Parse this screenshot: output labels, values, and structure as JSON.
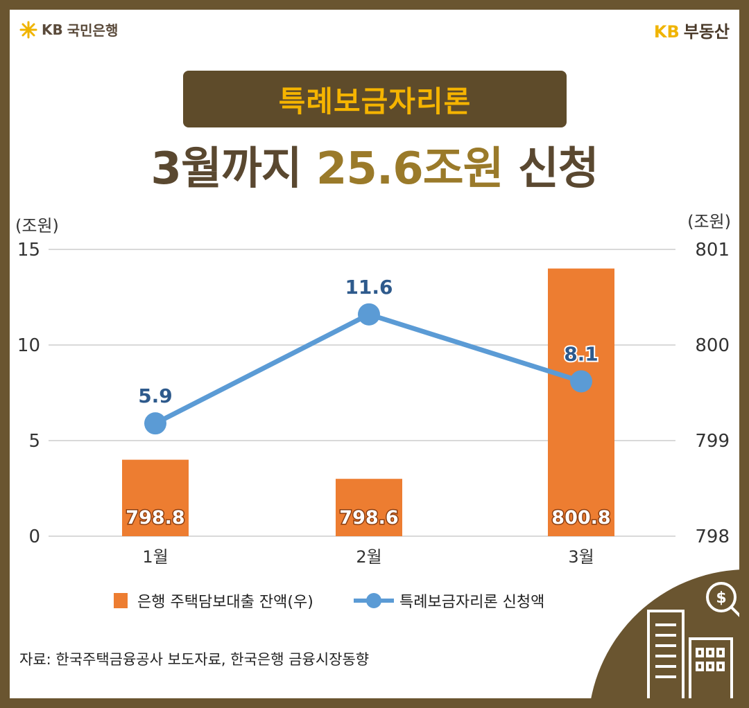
{
  "brand": {
    "left_kb": "KB",
    "left_name": "국민은행",
    "right_kb": "KB",
    "right_name": "부동산"
  },
  "title": "특례보금자리론",
  "headline": {
    "pre": "3월까지 ",
    "highlight": "25.6조원",
    "post": " 신청"
  },
  "unit_left": "(조원)",
  "unit_right": "(조원)",
  "source": "자료: 한국주택금융공사 보도자료, 한국은행 금융시장동향",
  "colors": {
    "bar": "#ed7d31",
    "line": "#5b9bd5",
    "line_label": "#2e5a8c",
    "frame": "#6a5530"
  },
  "chart_data": {
    "type": "bar+line",
    "categories": [
      "1월",
      "2월",
      "3월"
    ],
    "left_axis": {
      "ticks": [
        "0",
        "5",
        "10",
        "15"
      ],
      "range": [
        0,
        15
      ]
    },
    "right_axis": {
      "ticks": [
        "798",
        "799",
        "800",
        "801"
      ],
      "range": [
        798,
        801
      ]
    },
    "series": [
      {
        "name": "은행 주택담보대출 잔액(우)",
        "type": "bar",
        "axis": "right",
        "values": [
          798.8,
          798.6,
          800.8
        ],
        "labels": [
          "798.8",
          "798.6",
          "800.8"
        ]
      },
      {
        "name": "특례보금자리론 신청액",
        "type": "line",
        "axis": "left",
        "values": [
          5.9,
          11.6,
          8.1
        ],
        "labels": [
          "5.9",
          "11.6",
          "8.1"
        ]
      }
    ],
    "grid": true,
    "legend": "bottom"
  }
}
